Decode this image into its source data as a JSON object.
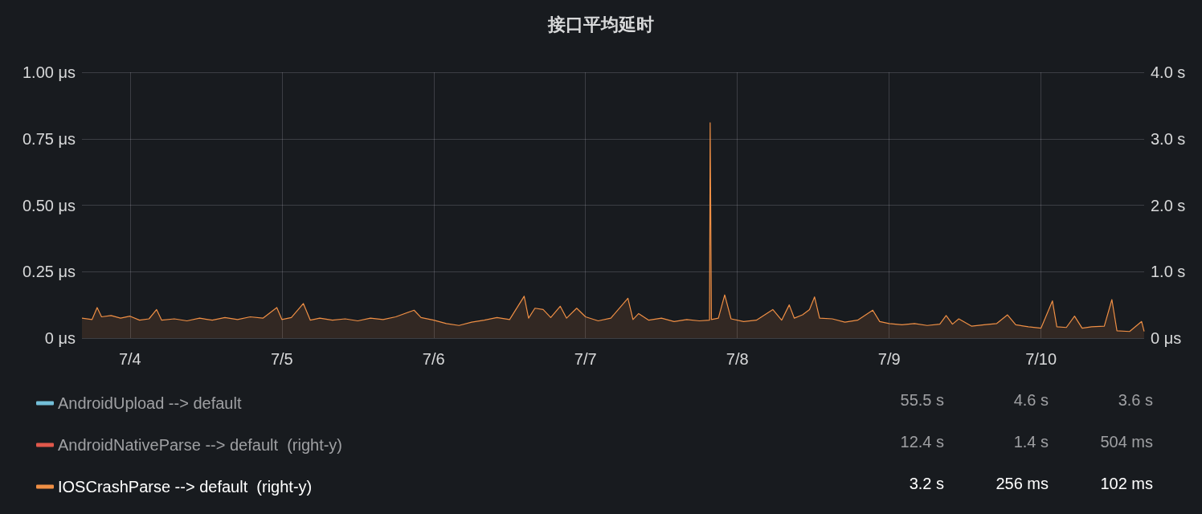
{
  "chart_data": {
    "type": "line",
    "title": "接口平均延时",
    "xlim": [
      "--07-03T16:24",
      "--07-10T16:18"
    ],
    "xticks": [
      {
        "value": "--07-04",
        "label": "7/4"
      },
      {
        "value": "--07-05",
        "label": "7/5"
      },
      {
        "value": "--07-06",
        "label": "7/6"
      },
      {
        "value": "--07-07",
        "label": "7/7"
      },
      {
        "value": "--07-08",
        "label": "7/8"
      },
      {
        "value": "--07-09",
        "label": "7/9"
      },
      {
        "value": "--07-10",
        "label": "7/10"
      }
    ],
    "ylim": [
      0,
      1
    ],
    "yticks": [
      {
        "value": 0,
        "label": "0 μs"
      },
      {
        "value": 0.25,
        "label": "0.25 μs"
      },
      {
        "value": 0.5,
        "label": "0.50 μs"
      },
      {
        "value": 0.75,
        "label": "0.75 μs"
      },
      {
        "value": 1,
        "label": "1.00 μs"
      }
    ],
    "y2lim": [
      0,
      4
    ],
    "y2ticks": [
      {
        "value": 0,
        "label": "0 μs"
      },
      {
        "value": 1,
        "label": "1.0 s"
      },
      {
        "value": 2,
        "label": "2.0 s"
      },
      {
        "value": 3,
        "label": "3.0 s"
      },
      {
        "value": 4,
        "label": "4.0 s"
      }
    ],
    "grid": true,
    "legend": "bottom",
    "marker": "none",
    "line_style": "solid",
    "annotations": [
      "55.5 s",
      "4.6 s",
      "3.6 s",
      "12.4 s",
      "1.4 s",
      "504 ms",
      "3.2 s",
      "256 ms",
      "102 ms"
    ],
    "series": [
      {
        "name": "AndroidUpload --> default",
        "color": "#73bfd8"
      },
      {
        "name": "AndroidNativeParse --> default  (right-y)",
        "color": "#e0584b",
        "axis": "y2"
      },
      {
        "name": "IOSCrashParse --> default  (right-y)",
        "color": "#ef8f45",
        "axis": "y2",
        "type": "area",
        "x": [
          "--07-03T16:24",
          "--07-03T18:00",
          "--07-03T18:48",
          "--07-03T19:30",
          "--07-03T21:00",
          "--07-03T22:30",
          "--07-04T00:00",
          "--07-04T01:30",
          "--07-04T03:00",
          "--07-04T04:12",
          "--07-04T05:00",
          "--07-04T07:00",
          "--07-04T09:00",
          "--07-04T11:00",
          "--07-04T13:00",
          "--07-04T15:00",
          "--07-04T17:00",
          "--07-04T19:00",
          "--07-04T21:00",
          "--07-04T23:12",
          "--07-05T00:00",
          "--07-05T01:30",
          "--07-05T03:24",
          "--07-05T04:30",
          "--07-05T06:00",
          "--07-05T08:00",
          "--07-05T10:00",
          "--07-05T12:00",
          "--07-05T14:00",
          "--07-05T16:00",
          "--07-05T18:00",
          "--07-05T20:54",
          "--07-05T22:00",
          "--07-06T00:00",
          "--07-06T02:00",
          "--07-06T04:00",
          "--07-06T06:00",
          "--07-06T08:00",
          "--07-06T10:00",
          "--07-06T12:00",
          "--07-06T14:18",
          "--07-06T15:00",
          "--07-06T16:00",
          "--07-06T17:18",
          "--07-06T18:30",
          "--07-06T20:00",
          "--07-06T21:00",
          "--07-06T22:36",
          "--07-07T00:00",
          "--07-07T02:00",
          "--07-07T04:00",
          "--07-07T06:42",
          "--07-07T07:30",
          "--07-07T08:24",
          "--07-07T10:00",
          "--07-07T12:00",
          "--07-07T14:00",
          "--07-07T16:00",
          "--07-07T18:00",
          "--07-07T19:36",
          "--07-07T19:42",
          "--07-07T19:54",
          "--07-07T21:00",
          "--07-07T22:00",
          "--07-07T23:00",
          "--07-08T01:00",
          "--07-08T03:00",
          "--07-08T05:36",
          "--07-08T07:00",
          "--07-08T08:12",
          "--07-08T09:00",
          "--07-08T10:18",
          "--07-08T11:24",
          "--07-08T12:12",
          "--07-08T13:00",
          "--07-08T15:00",
          "--07-08T17:00",
          "--07-08T19:00",
          "--07-08T21:24",
          "--07-08T22:30",
          "--07-09T00:00",
          "--07-09T02:00",
          "--07-09T04:00",
          "--07-09T06:00",
          "--07-09T08:00",
          "--07-09T09:00",
          "--07-09T10:00",
          "--07-09T11:00",
          "--07-09T13:00",
          "--07-09T15:00",
          "--07-09T17:00",
          "--07-09T18:42",
          "--07-09T20:00",
          "--07-09T22:00",
          "--07-10T00:00",
          "--07-10T01:48",
          "--07-10T02:30",
          "--07-10T04:00",
          "--07-10T05:18",
          "--07-10T06:30",
          "--07-10T08:00",
          "--07-10T10:00",
          "--07-10T11:12",
          "--07-10T12:00",
          "--07-10T14:00",
          "--07-10T15:54",
          "--07-10T16:18"
        ],
        "values": [
          0.3,
          0.28,
          0.46,
          0.32,
          0.34,
          0.3,
          0.33,
          0.27,
          0.29,
          0.43,
          0.27,
          0.29,
          0.26,
          0.3,
          0.27,
          0.31,
          0.28,
          0.32,
          0.3,
          0.46,
          0.28,
          0.31,
          0.52,
          0.27,
          0.3,
          0.27,
          0.29,
          0.26,
          0.3,
          0.28,
          0.32,
          0.42,
          0.31,
          0.27,
          0.22,
          0.19,
          0.24,
          0.27,
          0.31,
          0.28,
          0.63,
          0.3,
          0.45,
          0.43,
          0.31,
          0.48,
          0.3,
          0.45,
          0.32,
          0.26,
          0.3,
          0.6,
          0.28,
          0.37,
          0.27,
          0.3,
          0.25,
          0.28,
          0.26,
          0.27,
          3.24,
          0.28,
          0.3,
          0.65,
          0.29,
          0.25,
          0.27,
          0.43,
          0.27,
          0.5,
          0.3,
          0.35,
          0.43,
          0.62,
          0.3,
          0.29,
          0.24,
          0.27,
          0.42,
          0.25,
          0.22,
          0.2,
          0.22,
          0.19,
          0.21,
          0.34,
          0.21,
          0.29,
          0.18,
          0.2,
          0.22,
          0.35,
          0.2,
          0.17,
          0.15,
          0.56,
          0.17,
          0.16,
          0.33,
          0.15,
          0.17,
          0.18,
          0.58,
          0.11,
          0.1,
          0.25,
          0.1
        ]
      }
    ]
  }
}
